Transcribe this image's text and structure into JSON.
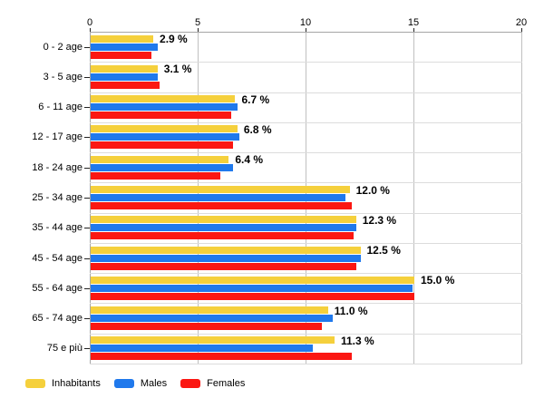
{
  "chart_data": {
    "type": "bar",
    "orientation": "horizontal",
    "title": "",
    "categories": [
      "0 - 2 age",
      "3 - 5 age",
      "6 - 11 age",
      "12 - 17 age",
      "18 - 24 age",
      "25 - 34 age",
      "35 - 44 age",
      "45 - 54 age",
      "55 - 64 age",
      "65 - 74 age",
      "75 e più"
    ],
    "series": [
      {
        "name": "Inhabitants",
        "color": "#F5D03C",
        "values": [
          2.9,
          3.1,
          6.7,
          6.8,
          6.4,
          12.0,
          12.3,
          12.5,
          15.0,
          11.0,
          11.3
        ]
      },
      {
        "name": "Males",
        "color": "#2079EC",
        "values": [
          3.1,
          3.1,
          6.8,
          6.9,
          6.6,
          11.8,
          12.3,
          12.5,
          14.9,
          11.2,
          10.3
        ]
      },
      {
        "name": "Females",
        "color": "#FB1712",
        "values": [
          2.8,
          3.2,
          6.5,
          6.6,
          6.0,
          12.1,
          12.2,
          12.3,
          15.0,
          10.7,
          12.1
        ]
      }
    ],
    "value_labels": [
      "2.9 %",
      "3.1 %",
      "6.7 %",
      "6.8 %",
      "6.4 %",
      "12.0 %",
      "12.3 %",
      "12.5 %",
      "15.0 %",
      "11.0 %",
      "11.3 %"
    ],
    "xlim": [
      0,
      20
    ],
    "xticks": [
      0,
      5,
      10,
      15,
      20
    ],
    "grid": true,
    "legend_position": "bottom-left",
    "axis_position": "top"
  },
  "colors": {
    "background": "#ffffff",
    "vertical_grid": "#c0c0c0",
    "row_separator": "#dcdcdc",
    "axis_line": "#a6a6a6",
    "tick_mark": "#222222",
    "text": "#000000"
  }
}
